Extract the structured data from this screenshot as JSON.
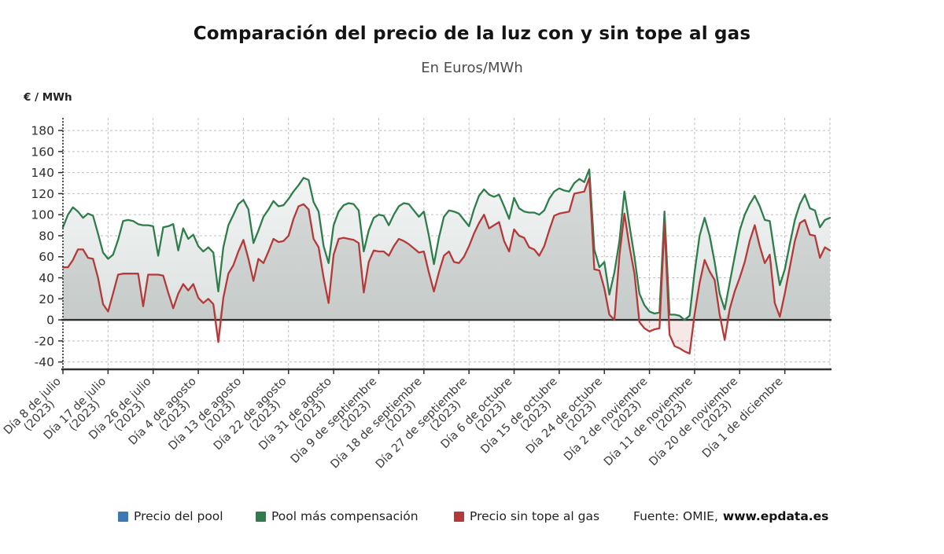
{
  "header": {
    "title": "Comparación del precio de la luz con y sin tope al gas",
    "subtitle": "En Euros/MWh",
    "y_axis_unit_label": "€ / MWh"
  },
  "legend": {
    "items": [
      {
        "label": "Precio del pool",
        "color": "#3c78b4"
      },
      {
        "label": "Pool más compensación",
        "color": "#2e7d4b"
      },
      {
        "label": "Precio sin tope al gas",
        "color": "#b43a3a"
      }
    ],
    "source_prefix": "Fuente: OMIE,",
    "source_site": "www.epdata.es"
  },
  "colors": {
    "grid": "#a9a9a9",
    "axis": "#2f2f2f",
    "tick_text": "#2e2e2e",
    "xlabel_text": "#3b3b3b",
    "fill_top": "#fcfdfd",
    "fill_bottom": "#dce1e0",
    "under_red_overlay": "rgba(150,156,152,0.30)",
    "negative_fill": "rgba(196,74,74,0.13)"
  },
  "chart_data": {
    "type": "line",
    "title": "Comparación del precio de la luz con y sin tope al gas",
    "subtitle": "En Euros/MWh",
    "ylabel": "€ / MWh",
    "ylim": [
      -47,
      192
    ],
    "y_ticks": [
      180,
      160,
      140,
      120,
      100,
      80,
      60,
      40,
      20,
      0,
      -20,
      -40
    ],
    "grid": true,
    "legend_position": "bottom",
    "x_tick_every_n_points": 9,
    "x_tick_labels": [
      "Día 8 de julio\n(2023)",
      "Día 17 de julio\n(2023)",
      "Día 26 de julio\n(2023)",
      "Día 4 de agosto\n(2023)",
      "Día 13 de agosto\n(2023)",
      "Día 22 de agosto\n(2023)",
      "Día 31 de agosto\n(2023)",
      "Día 9 de septiembre\n(2023)",
      "Día 18 de septiembre\n(2023)",
      "Día 27 de septiembre\n(2023)",
      "Día 6 de octubre\n(2023)",
      "Día 15 de octubre\n(2023)",
      "Día 24 de octubre\n(2023)",
      "Día 2 de noviembre\n(2023)",
      "Día 11 de noviembre\n(2023)",
      "Día 20 de noviembre\n(2023)",
      "Día 1 de diciembre"
    ],
    "series": [
      {
        "name": "Pool más compensación",
        "color": "#2e7d4b",
        "values": [
          88,
          100,
          107,
          103,
          97,
          101,
          99,
          82,
          64,
          58,
          62,
          76,
          94,
          95,
          94,
          91,
          90,
          90,
          89,
          61,
          88,
          89,
          91,
          66,
          87,
          77,
          81,
          70,
          65,
          69,
          64,
          27,
          69,
          90,
          100,
          110,
          114,
          105,
          73,
          85,
          98,
          105,
          113,
          108,
          109,
          115,
          122,
          128,
          135,
          133,
          112,
          103,
          70,
          54,
          90,
          103,
          109,
          111,
          110,
          104,
          65,
          85,
          97,
          100,
          99,
          90,
          100,
          108,
          111,
          110,
          104,
          98,
          103,
          80,
          53,
          78,
          98,
          104,
          103,
          101,
          95,
          89,
          105,
          118,
          124,
          119,
          117,
          119,
          108,
          96,
          116,
          106,
          103,
          102,
          102,
          100,
          104,
          115,
          122,
          125,
          123,
          122,
          130,
          134,
          131,
          143,
          67,
          50,
          55,
          24,
          45,
          75,
          122,
          90,
          60,
          25,
          14,
          8,
          6,
          7,
          103,
          5,
          5,
          4,
          0,
          4,
          45,
          80,
          97,
          80,
          55,
          25,
          10,
          35,
          60,
          85,
          100,
          110,
          118,
          108,
          95,
          94,
          62,
          33,
          48,
          72,
          95,
          110,
          119,
          106,
          104,
          88,
          95,
          97
        ]
      },
      {
        "name": "Precio sin tope al gas",
        "color": "#b43a3a",
        "values": [
          50,
          50,
          57,
          67,
          67,
          59,
          58,
          40,
          15,
          8,
          25,
          43,
          44,
          44,
          44,
          44,
          13,
          43,
          43,
          43,
          42,
          26,
          11,
          25,
          34,
          28,
          34,
          21,
          16,
          20,
          15,
          -21,
          21,
          44,
          52,
          65,
          76,
          58,
          37,
          58,
          54,
          65,
          77,
          74,
          75,
          80,
          96,
          108,
          110,
          105,
          77,
          69,
          40,
          16,
          62,
          77,
          78,
          77,
          76,
          73,
          26,
          55,
          66,
          65,
          65,
          61,
          70,
          77,
          75,
          72,
          68,
          64,
          65,
          45,
          27,
          45,
          61,
          65,
          55,
          54,
          60,
          70,
          82,
          92,
          100,
          87,
          90,
          93,
          75,
          65,
          86,
          80,
          78,
          69,
          67,
          61,
          70,
          85,
          99,
          101,
          102,
          103,
          120,
          121,
          122,
          135,
          48,
          47,
          30,
          5,
          0,
          61,
          101,
          70,
          44,
          -2,
          -8,
          -11,
          -9,
          -8,
          92,
          -14,
          -25,
          -27,
          -30,
          -32,
          5,
          35,
          57,
          46,
          38,
          5,
          -19,
          10,
          27,
          40,
          55,
          75,
          90,
          70,
          54,
          62,
          16,
          3,
          25,
          50,
          75,
          92,
          95,
          81,
          80,
          59,
          69,
          66
        ]
      },
      {
        "name": "Precio del pool",
        "color": "#3c78b4",
        "visible_in_chart": false,
        "note": "Legend entry shown but no distinct blue line is visible in the plot (coincides with Pool más compensación)."
      }
    ]
  }
}
